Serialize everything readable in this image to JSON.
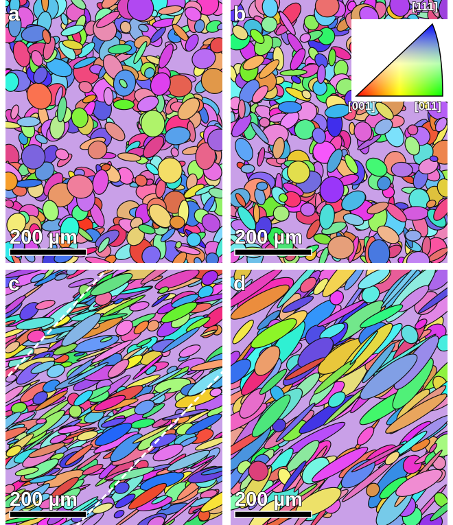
{
  "panels": [
    {
      "label": "a",
      "scale_bar": "200 µm"
    },
    {
      "label": "b",
      "scale_bar": "200 µm"
    },
    {
      "label": "c",
      "scale_bar": "200 µm"
    },
    {
      "label": "d",
      "scale_bar": "200 µm"
    }
  ],
  "ipf_legend": {
    "top": "[111]",
    "left": "[001]",
    "right": "[011]"
  }
}
